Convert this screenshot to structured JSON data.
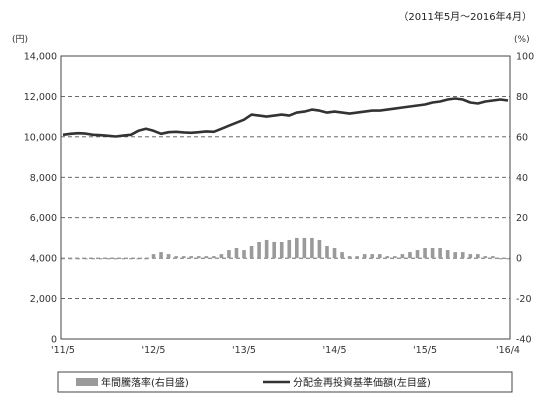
{
  "period_label": "（2011年5月～2016年4月）",
  "chart_data": {
    "type": "bar+line",
    "left_unit": "(円)",
    "right_unit": "(%)",
    "left_axis": {
      "ylim": [
        0,
        14000
      ],
      "ticks": [
        "0",
        "2,000",
        "4,000",
        "6,000",
        "8,000",
        "10,000",
        "12,000",
        "14,000"
      ]
    },
    "right_axis": {
      "ylim": [
        -40,
        100
      ],
      "ticks": [
        "-40",
        "-20",
        "0",
        "20",
        "40",
        "60",
        "80",
        "100"
      ]
    },
    "x_tick_labels": [
      "'11/5",
      "'12/5",
      "'13/5",
      "'14/5",
      "'15/5",
      "'16/4"
    ],
    "grid": "horizontal dashed",
    "series": [
      {
        "name": "年間騰落率(右目盛)",
        "kind": "bar",
        "axis": "right",
        "color": "#9a9a9a",
        "values": [
          0,
          0,
          0,
          0,
          0,
          0,
          0,
          0,
          0,
          0,
          0,
          0,
          2,
          3,
          2,
          1,
          1,
          1,
          1,
          1,
          1,
          2,
          4,
          5,
          4,
          6,
          8,
          9,
          8,
          8,
          9,
          10,
          10,
          10,
          9,
          6,
          5,
          3,
          1,
          1,
          2,
          2,
          2,
          1,
          1,
          2,
          3,
          4,
          5,
          5,
          5,
          4,
          3,
          3,
          2,
          2,
          1,
          1,
          0,
          0
        ]
      },
      {
        "name": "分配金再投資基準価額(左目盛)",
        "kind": "line",
        "axis": "left",
        "color": "#333333",
        "values": [
          10100,
          10150,
          10180,
          10160,
          10100,
          10080,
          10050,
          10020,
          10060,
          10100,
          10300,
          10400,
          10300,
          10150,
          10230,
          10250,
          10220,
          10200,
          10230,
          10270,
          10250,
          10400,
          10550,
          10700,
          10850,
          11100,
          11050,
          11000,
          11050,
          11100,
          11050,
          11200,
          11250,
          11350,
          11300,
          11200,
          11250,
          11200,
          11150,
          11200,
          11250,
          11300,
          11300,
          11350,
          11400,
          11450,
          11500,
          11550,
          11600,
          11700,
          11750,
          11850,
          11900,
          11850,
          11700,
          11650,
          11750,
          11800,
          11850,
          11800
        ]
      }
    ],
    "legend_position": "bottom"
  }
}
